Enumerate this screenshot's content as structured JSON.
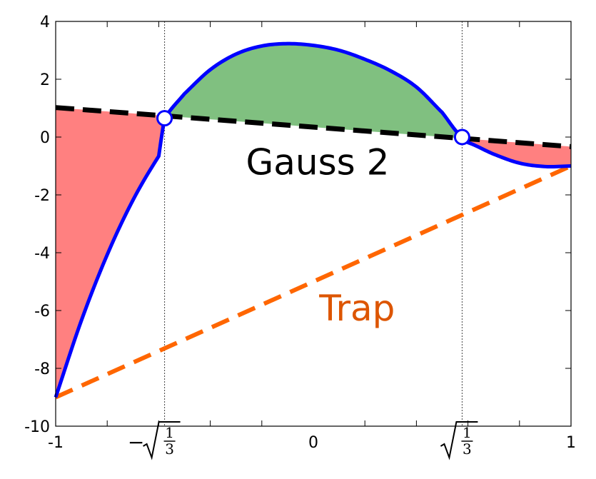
{
  "chart_data": {
    "type": "line",
    "title": "",
    "xlabel": "",
    "ylabel": "",
    "xlim": [
      -1,
      1
    ],
    "ylim": [
      -10,
      4
    ],
    "grid": false,
    "x_ticks": [
      -1,
      -0.57735,
      0,
      0.57735,
      1
    ],
    "x_tick_labels": [
      "-1",
      "−√(1/3)",
      "0",
      "√(1/3)",
      "1"
    ],
    "x_minor_ticks": [
      -0.8,
      -0.6,
      -0.4,
      -0.2,
      0.2,
      0.4,
      0.6,
      0.8
    ],
    "y_ticks": [
      -10,
      -8,
      -6,
      -4,
      -2,
      0,
      2,
      4
    ],
    "y_tick_labels": [
      "-10",
      "-8",
      "-6",
      "-4",
      "-2",
      "0",
      "2",
      "4"
    ],
    "series": [
      {
        "role": "function",
        "color": "#0000ff",
        "style": "solid",
        "x": [
          -1,
          -0.9,
          -0.8,
          -0.7,
          -0.6,
          -0.57735,
          -0.5,
          -0.4,
          -0.3,
          -0.2,
          -0.1,
          0,
          0.1,
          0.2,
          0.3,
          0.4,
          0.5,
          0.57735,
          0.6,
          0.7,
          0.8,
          0.9,
          1
        ],
        "y": [
          -9.0,
          -6.34,
          -4.07,
          -2.18,
          -0.66,
          0.65,
          1.5,
          2.33,
          2.87,
          3.15,
          3.23,
          3.17,
          3.0,
          2.69,
          2.29,
          1.73,
          0.85,
          -0.0,
          -0.19,
          -0.59,
          -0.9,
          -1.02,
          -1.0
        ]
      },
      {
        "name": "Gauss 2",
        "role": "gauss-interpolant",
        "color": "#000000",
        "style": "dashed",
        "x": [
          -1,
          1
        ],
        "y": [
          1.02,
          -0.33
        ]
      },
      {
        "name": "Trap",
        "role": "trapezoid-line",
        "color": "#ff6600",
        "style": "dashed",
        "x": [
          -1,
          1
        ],
        "y": [
          -9.0,
          -1.0
        ]
      }
    ],
    "gauss_points": [
      {
        "x": -0.57735,
        "y": 0.65
      },
      {
        "x": 0.57735,
        "y": -0.0
      }
    ],
    "fills": [
      {
        "region": "left",
        "color": "#ff8080",
        "from_x": -1,
        "to_x": -0.57735
      },
      {
        "region": "middle",
        "color": "#80c080",
        "from_x": -0.57735,
        "to_x": 0.57735
      },
      {
        "region": "right",
        "color": "#ff8080",
        "from_x": 0.57735,
        "to_x": 1
      }
    ],
    "annotations": [
      {
        "text": "Gauss 2",
        "x": 0.0,
        "y": -0.85,
        "color": "#000000"
      },
      {
        "text": "Trap",
        "x": 0.17,
        "y": -5.9,
        "color": "#dd5500"
      }
    ]
  }
}
